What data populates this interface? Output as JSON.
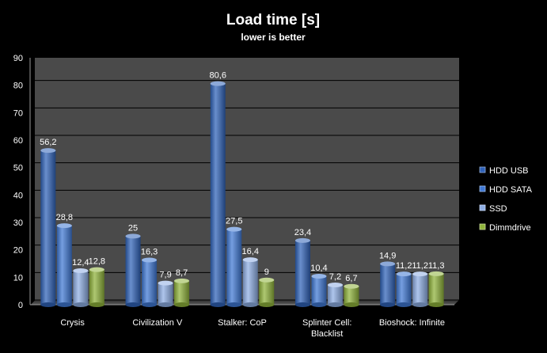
{
  "chart_data": {
    "type": "bar",
    "title": "Load time [s]",
    "subtitle": "lower is better",
    "categories": [
      "Crysis",
      "Civilization V",
      "Stalker: CoP",
      "Splinter Cell:\nBlacklist",
      "Bioshock: Infinite"
    ],
    "series": [
      {
        "name": "HDD USB",
        "values": [
          56.2,
          25,
          80.6,
          23.4,
          14.9
        ],
        "labels": [
          "56,2",
          "25",
          "80,6",
          "23,4",
          "14,9"
        ],
        "color": "#2f62b8"
      },
      {
        "name": "HDD SATA",
        "values": [
          28.8,
          16.3,
          27.5,
          10.4,
          11.2
        ],
        "labels": [
          "28,8",
          "16,3",
          "27,5",
          "10,4",
          "11,2"
        ],
        "color": "#3f78d4"
      },
      {
        "name": "SSD",
        "values": [
          12.4,
          7.9,
          16.4,
          7.2,
          11.2
        ],
        "labels": [
          "12,4",
          "7,9",
          "16,4",
          "7,2",
          "11,2"
        ],
        "color": "#8eaee4"
      },
      {
        "name": "Dimmdrive",
        "values": [
          12.8,
          8.7,
          9,
          6.7,
          11.3
        ],
        "labels": [
          "12,8",
          "8,7",
          "9",
          "6,7",
          "11,3"
        ],
        "color": "#8fb33a"
      }
    ],
    "ylim": [
      0,
      90
    ],
    "yticks": [
      0,
      10,
      20,
      30,
      40,
      50,
      60,
      70,
      80,
      90
    ],
    "grid": true,
    "legend": "right",
    "colors": {
      "background": "#000000",
      "plot_area": "#4a4a4a",
      "grid": "#000000",
      "text": "#ffffff"
    }
  }
}
